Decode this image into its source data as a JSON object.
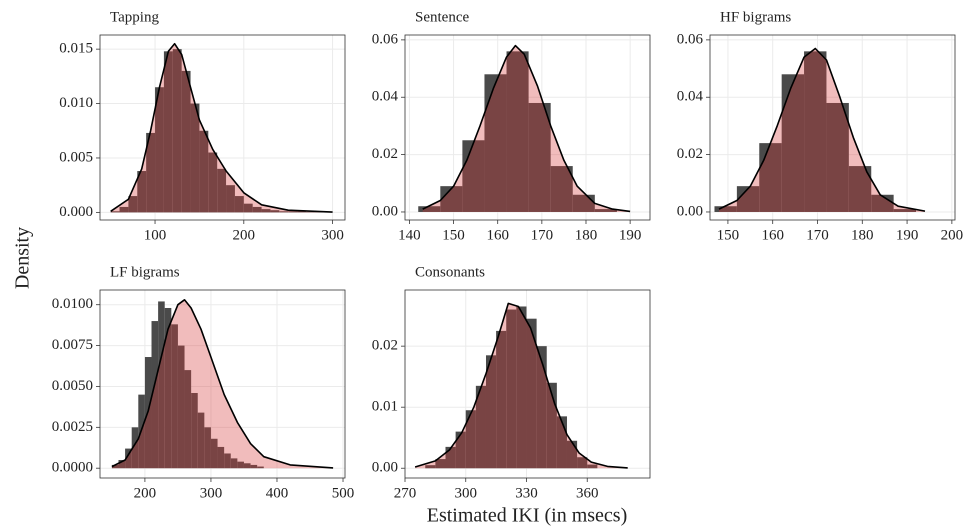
{
  "xlabel": "Estimated IKI (in msecs)",
  "ylabel": "Density",
  "chart_data": [
    {
      "type": "histogram",
      "title": "Tapping",
      "bins": [
        50,
        60,
        70,
        80,
        90,
        100,
        110,
        120,
        130,
        140,
        150,
        160,
        170,
        180,
        190,
        200,
        210,
        220,
        230,
        240,
        250,
        260,
        270,
        280,
        290,
        300
      ],
      "values": [
        0.0001,
        0.0005,
        0.0015,
        0.0038,
        0.0073,
        0.0115,
        0.0148,
        0.015,
        0.013,
        0.01,
        0.0075,
        0.0055,
        0.004,
        0.0025,
        0.0015,
        0.0008,
        0.0005,
        0.0003,
        0.0002,
        0.0001,
        0.0001,
        0.0001,
        5e-05,
        3e-05,
        2e-05
      ],
      "density_x": [
        50,
        70,
        85,
        95,
        105,
        115,
        122,
        130,
        140,
        150,
        165,
        180,
        200,
        220,
        250,
        300
      ],
      "density_y": [
        0.0001,
        0.0012,
        0.004,
        0.0075,
        0.0115,
        0.0148,
        0.0155,
        0.0145,
        0.0115,
        0.0085,
        0.0058,
        0.0038,
        0.0018,
        0.0007,
        0.0002,
        3e-05
      ],
      "xlim": [
        38,
        314
      ],
      "xticks": [
        100,
        200,
        300
      ],
      "ylim": [
        -0.0007,
        0.0163
      ],
      "yticks": [
        {
          "value": 0,
          "label": "0.000"
        },
        {
          "value": 0.005,
          "label": "0.005"
        },
        {
          "value": 0.01,
          "label": "0.010"
        },
        {
          "value": 0.015,
          "label": "0.015"
        }
      ]
    },
    {
      "type": "histogram",
      "title": "Sentence",
      "bins": [
        142,
        147,
        152,
        157,
        162,
        167,
        172,
        177,
        182,
        187
      ],
      "values": [
        0.002,
        0.009,
        0.025,
        0.048,
        0.056,
        0.038,
        0.016,
        0.006,
        0.001
      ],
      "density_x": [
        143,
        147,
        150,
        153,
        156,
        159,
        162,
        164,
        166,
        169,
        172,
        175,
        178,
        182,
        186,
        190
      ],
      "density_y": [
        0.001,
        0.004,
        0.009,
        0.018,
        0.03,
        0.043,
        0.054,
        0.058,
        0.055,
        0.044,
        0.03,
        0.018,
        0.009,
        0.003,
        0.001,
        0.0002
      ],
      "xlim": [
        139,
        194.5
      ],
      "xticks": [
        140,
        150,
        160,
        170,
        180,
        190
      ],
      "ylim": [
        -0.0028,
        0.0617
      ],
      "yticks": [
        {
          "value": 0,
          "label": "0.00"
        },
        {
          "value": 0.02,
          "label": "0.02"
        },
        {
          "value": 0.04,
          "label": "0.04"
        },
        {
          "value": 0.06,
          "label": "0.06"
        }
      ]
    },
    {
      "type": "histogram",
      "title": "HF bigrams",
      "bins": [
        147,
        152,
        157,
        162,
        167,
        172,
        177,
        182,
        187,
        192
      ],
      "values": [
        0.002,
        0.009,
        0.024,
        0.048,
        0.056,
        0.038,
        0.016,
        0.006,
        0.001
      ],
      "density_x": [
        148,
        152,
        155,
        158,
        161,
        164,
        167,
        169.5,
        172,
        175,
        178,
        181,
        184,
        188,
        194
      ],
      "density_y": [
        0.001,
        0.004,
        0.009,
        0.018,
        0.03,
        0.043,
        0.054,
        0.057,
        0.053,
        0.04,
        0.026,
        0.014,
        0.006,
        0.002,
        0.0003
      ],
      "xlim": [
        146,
        200.7
      ],
      "xticks": [
        150,
        160,
        170,
        180,
        190,
        200
      ],
      "ylim": [
        -0.0028,
        0.0617
      ],
      "yticks": [
        {
          "value": 0,
          "label": "0.00"
        },
        {
          "value": 0.02,
          "label": "0.02"
        },
        {
          "value": 0.04,
          "label": "0.04"
        },
        {
          "value": 0.06,
          "label": "0.06"
        }
      ]
    },
    {
      "type": "histogram",
      "title": "LF bigrams",
      "bins": [
        150,
        160,
        170,
        180,
        190,
        200,
        210,
        220,
        230,
        240,
        250,
        260,
        270,
        280,
        290,
        300,
        310,
        320,
        330,
        340,
        350,
        360,
        370,
        380
      ],
      "values": [
        0.0002,
        0.0005,
        0.0012,
        0.0025,
        0.0045,
        0.0068,
        0.009,
        0.0102,
        0.0098,
        0.0088,
        0.0075,
        0.006,
        0.0046,
        0.0034,
        0.0025,
        0.0018,
        0.0013,
        0.0009,
        0.0006,
        0.0004,
        0.0003,
        0.0002,
        0.0001
      ],
      "density_x": [
        150,
        170,
        190,
        205,
        220,
        235,
        250,
        260,
        270,
        285,
        300,
        320,
        340,
        360,
        380,
        420,
        485
      ],
      "density_y": [
        0.0001,
        0.0005,
        0.0018,
        0.0035,
        0.006,
        0.0085,
        0.01,
        0.0103,
        0.0098,
        0.0085,
        0.0068,
        0.0045,
        0.0028,
        0.0015,
        0.0007,
        0.0002,
        2e-05
      ],
      "xlim": [
        132,
        503
      ],
      "xticks": [
        200,
        300,
        400,
        500
      ],
      "ylim": [
        -0.0006,
        0.0109
      ],
      "yticks": [
        {
          "value": 0,
          "label": "0.0000"
        },
        {
          "value": 0.0025,
          "label": "0.0025"
        },
        {
          "value": 0.005,
          "label": "0.0050"
        },
        {
          "value": 0.0075,
          "label": "0.0075"
        },
        {
          "value": 0.01,
          "label": "0.0100"
        }
      ]
    },
    {
      "type": "histogram",
      "title": "Consonants",
      "bins": [
        280,
        285,
        290,
        295,
        300,
        305,
        310,
        315,
        320,
        325,
        330,
        335,
        340,
        345,
        350,
        355,
        360,
        365
      ],
      "values": [
        0.0005,
        0.0015,
        0.0035,
        0.006,
        0.0095,
        0.0135,
        0.0185,
        0.0225,
        0.026,
        0.0265,
        0.0245,
        0.02,
        0.014,
        0.0085,
        0.0045,
        0.0018,
        0.0006
      ],
      "density_x": [
        275,
        285,
        292,
        298,
        304,
        310,
        316,
        321,
        326,
        332,
        338,
        344,
        350,
        356,
        362,
        370,
        380
      ],
      "density_y": [
        0.0002,
        0.0012,
        0.003,
        0.0058,
        0.01,
        0.0155,
        0.0215,
        0.027,
        0.0265,
        0.023,
        0.017,
        0.0105,
        0.0055,
        0.0025,
        0.001,
        0.0003,
        5e-05
      ],
      "xlim": [
        270,
        391
      ],
      "xticks": [
        270,
        300,
        330,
        360
      ],
      "ylim": [
        -0.0016,
        0.0292
      ],
      "yticks": [
        {
          "value": 0,
          "label": "0.00"
        },
        {
          "value": 0.01,
          "label": "0.01"
        },
        {
          "value": 0.02,
          "label": "0.02"
        }
      ]
    }
  ]
}
